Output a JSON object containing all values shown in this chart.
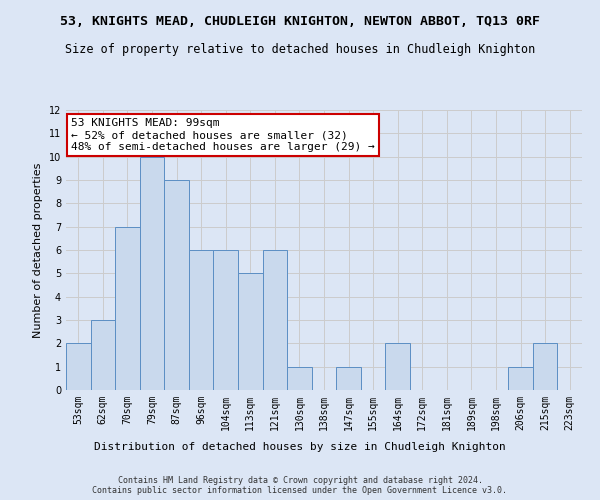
{
  "title_main": "53, KNIGHTS MEAD, CHUDLEIGH KNIGHTON, NEWTON ABBOT, TQ13 0RF",
  "title_sub": "Size of property relative to detached houses in Chudleigh Knighton",
  "xlabel": "Distribution of detached houses by size in Chudleigh Knighton",
  "ylabel": "Number of detached properties",
  "categories": [
    "53sqm",
    "62sqm",
    "70sqm",
    "79sqm",
    "87sqm",
    "96sqm",
    "104sqm",
    "113sqm",
    "121sqm",
    "130sqm",
    "138sqm",
    "147sqm",
    "155sqm",
    "164sqm",
    "172sqm",
    "181sqm",
    "189sqm",
    "198sqm",
    "206sqm",
    "215sqm",
    "223sqm"
  ],
  "values": [
    2,
    3,
    7,
    10,
    9,
    6,
    6,
    5,
    6,
    1,
    0,
    1,
    0,
    2,
    0,
    0,
    0,
    0,
    1,
    2,
    0
  ],
  "bar_color": "#c9d9ed",
  "bar_edge_color": "#5b8ec4",
  "annotation_text": "53 KNIGHTS MEAD: 99sqm\n← 52% of detached houses are smaller (32)\n48% of semi-detached houses are larger (29) →",
  "annotation_box_color": "#ffffff",
  "annotation_box_edge": "#cc0000",
  "ylim": [
    0,
    12
  ],
  "yticks": [
    0,
    1,
    2,
    3,
    4,
    5,
    6,
    7,
    8,
    9,
    10,
    11,
    12
  ],
  "grid_color": "#cccccc",
  "bg_color": "#dce6f5",
  "footnote": "Contains HM Land Registry data © Crown copyright and database right 2024.\nContains public sector information licensed under the Open Government Licence v3.0.",
  "title_fontsize": 9.5,
  "subtitle_fontsize": 8.5,
  "ylabel_fontsize": 8,
  "xlabel_fontsize": 8,
  "tick_fontsize": 7,
  "annot_fontsize": 8,
  "footnote_fontsize": 6
}
